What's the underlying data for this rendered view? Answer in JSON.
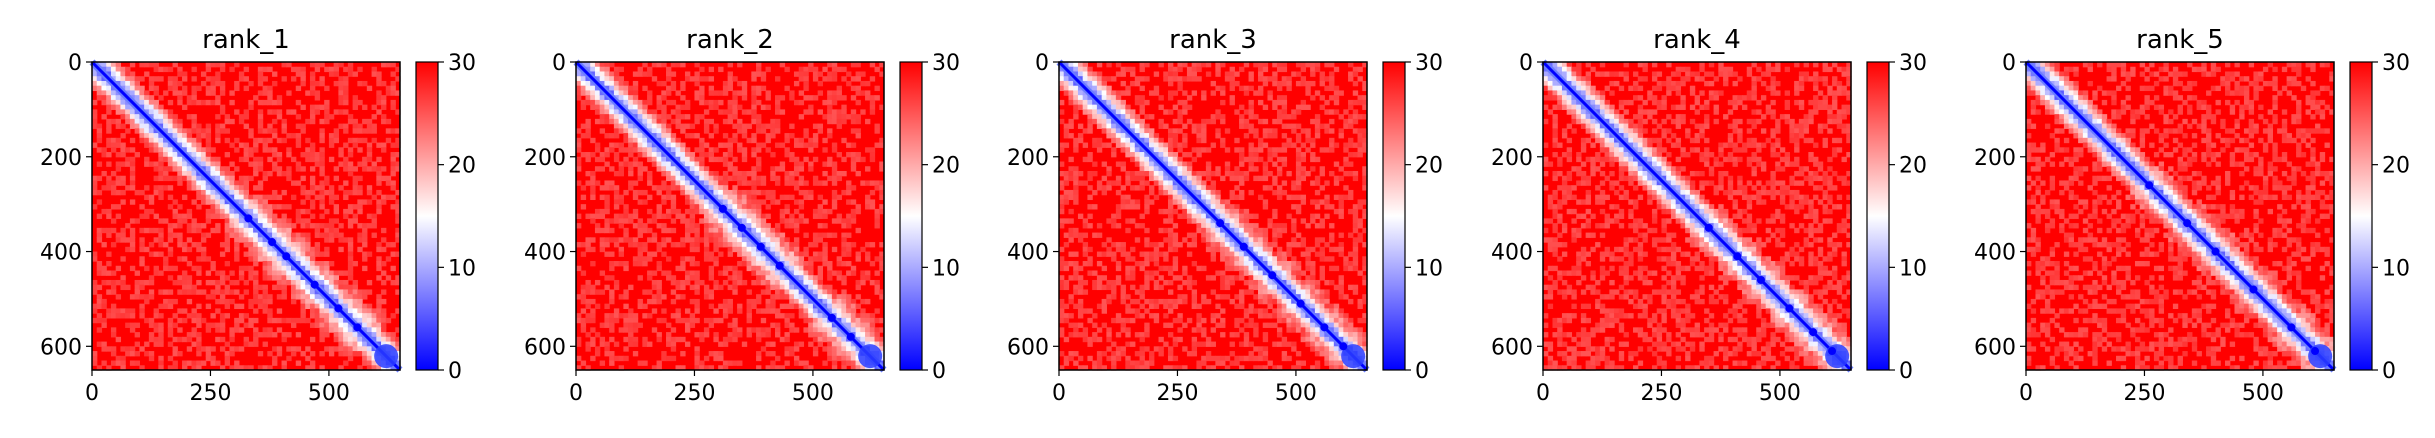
{
  "chart_data": [
    {
      "type": "heatmap",
      "title": "rank_1",
      "matrix_size": 650,
      "x_ticks": [
        "0",
        "250",
        "500"
      ],
      "x_tick_values": [
        0,
        250,
        500
      ],
      "y_ticks": [
        "0",
        "200",
        "400",
        "600"
      ],
      "y_tick_values": [
        0,
        200,
        400,
        600
      ],
      "colorbar": {
        "ticks": [
          "0",
          "10",
          "20",
          "30"
        ],
        "tick_values": [
          0,
          10,
          20,
          30
        ],
        "range": [
          0,
          30
        ],
        "colormap": [
          "#0000ff",
          "#ffffff",
          "#ff0000"
        ]
      },
      "features": {
        "diagonal": true,
        "blob_centers": [
          330,
          380,
          410,
          470,
          520,
          560
        ],
        "blob_strength": 0.55
      }
    },
    {
      "type": "heatmap",
      "title": "rank_2",
      "matrix_size": 650,
      "x_ticks": [
        "0",
        "250",
        "500"
      ],
      "x_tick_values": [
        0,
        250,
        500
      ],
      "y_ticks": [
        "0",
        "200",
        "400",
        "600"
      ],
      "y_tick_values": [
        0,
        200,
        400,
        600
      ],
      "colorbar": {
        "ticks": [
          "0",
          "10",
          "20",
          "30"
        ],
        "tick_values": [
          0,
          10,
          20,
          30
        ],
        "range": [
          0,
          30
        ],
        "colormap": [
          "#0000ff",
          "#ffffff",
          "#ff0000"
        ]
      },
      "features": {
        "diagonal": true,
        "blob_centers": [
          310,
          350,
          390,
          430,
          540,
          580
        ],
        "blob_strength": 0.6
      }
    },
    {
      "type": "heatmap",
      "title": "rank_3",
      "matrix_size": 650,
      "x_ticks": [
        "0",
        "250",
        "500"
      ],
      "x_tick_values": [
        0,
        250,
        500
      ],
      "y_ticks": [
        "0",
        "200",
        "400",
        "600"
      ],
      "y_tick_values": [
        0,
        200,
        400,
        600
      ],
      "colorbar": {
        "ticks": [
          "0",
          "10",
          "20",
          "30"
        ],
        "tick_values": [
          0,
          10,
          20,
          30
        ],
        "range": [
          0,
          30
        ],
        "colormap": [
          "#0000ff",
          "#ffffff",
          "#ff0000"
        ]
      },
      "features": {
        "diagonal": true,
        "blob_centers": [
          340,
          390,
          450,
          510,
          560,
          600
        ],
        "blob_strength": 0.45
      }
    },
    {
      "type": "heatmap",
      "title": "rank_4",
      "matrix_size": 650,
      "x_ticks": [
        "0",
        "250",
        "500"
      ],
      "x_tick_values": [
        0,
        250,
        500
      ],
      "y_ticks": [
        "0",
        "200",
        "400",
        "600"
      ],
      "y_tick_values": [
        0,
        200,
        400,
        600
      ],
      "colorbar": {
        "ticks": [
          "0",
          "10",
          "20",
          "30"
        ],
        "tick_values": [
          0,
          10,
          20,
          30
        ],
        "range": [
          0,
          30
        ],
        "colormap": [
          "#0000ff",
          "#ffffff",
          "#ff0000"
        ]
      },
      "features": {
        "diagonal": true,
        "blob_centers": [
          350,
          410,
          460,
          520,
          570,
          610
        ],
        "blob_strength": 0.45
      }
    },
    {
      "type": "heatmap",
      "title": "rank_5",
      "matrix_size": 650,
      "x_ticks": [
        "0",
        "250",
        "500"
      ],
      "x_tick_values": [
        0,
        250,
        500
      ],
      "y_ticks": [
        "0",
        "200",
        "400",
        "600"
      ],
      "y_tick_values": [
        0,
        200,
        400,
        600
      ],
      "colorbar": {
        "ticks": [
          "0",
          "10",
          "20",
          "30"
        ],
        "tick_values": [
          0,
          10,
          20,
          30
        ],
        "range": [
          0,
          30
        ],
        "colormap": [
          "#0000ff",
          "#ffffff",
          "#ff0000"
        ]
      },
      "features": {
        "diagonal": true,
        "blob_centers": [
          260,
          340,
          400,
          480,
          560,
          610
        ],
        "blob_strength": 0.45
      }
    }
  ]
}
